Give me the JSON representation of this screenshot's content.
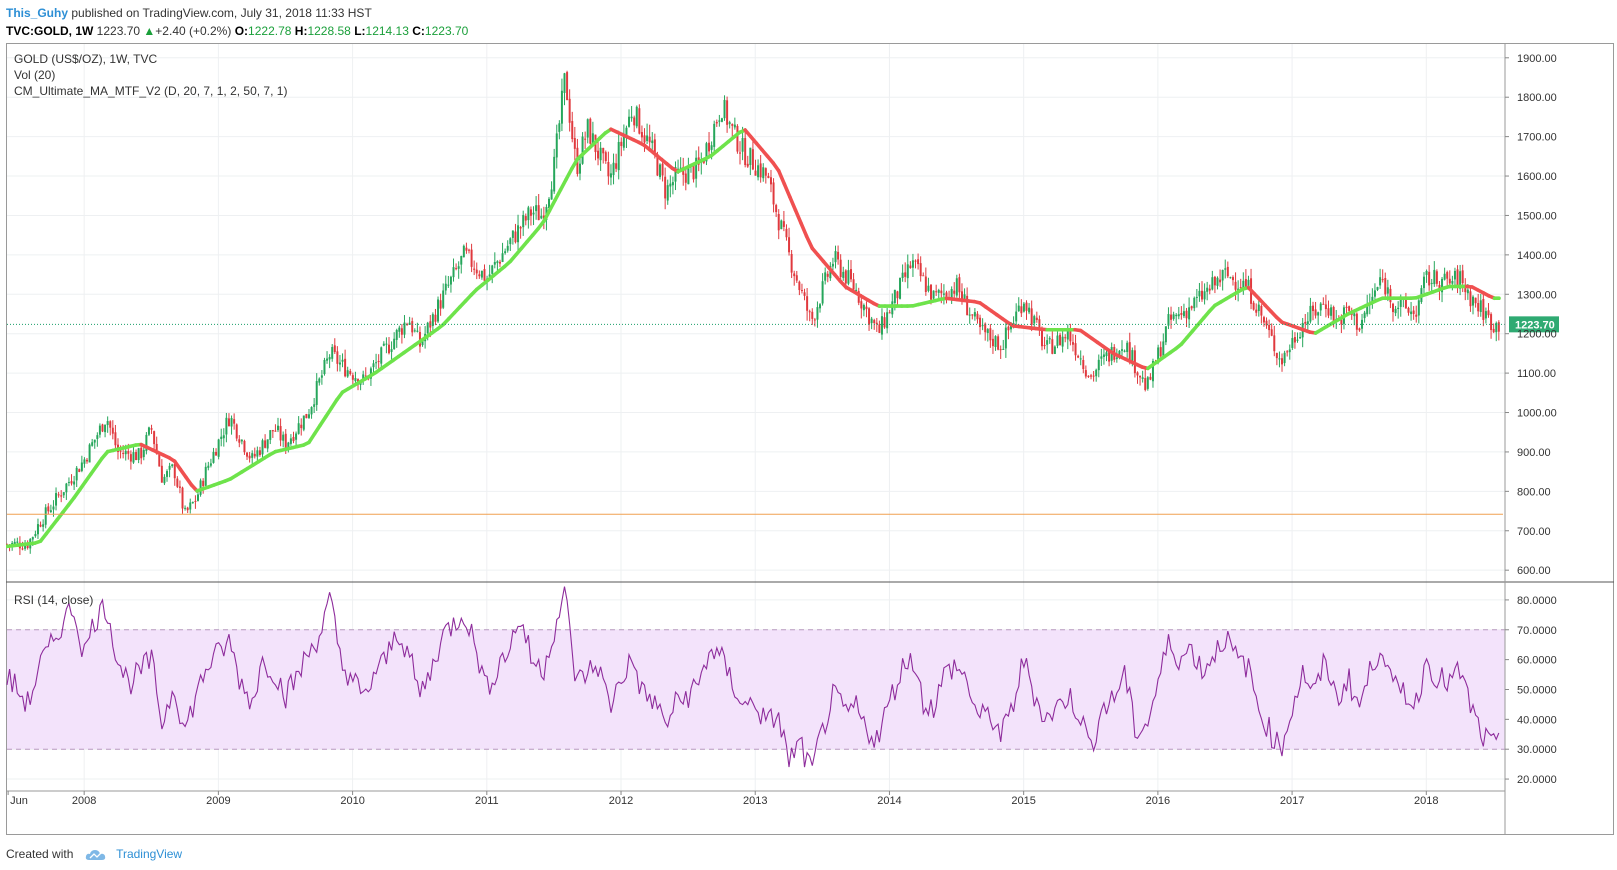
{
  "header": {
    "author": "This_Guhy",
    "published_text": "published on TradingView.com, July 31, 2018 11:33 HST",
    "symbol": "TVC:GOLD, 1W",
    "last": "1223.70",
    "change": "+2.40 (+0.2%)",
    "o_label": "O:",
    "o_value": "1222.78",
    "h_label": "H:",
    "h_value": "1228.58",
    "l_label": "L:",
    "l_value": "1214.13",
    "c_label": "C:",
    "c_value": "1223.70"
  },
  "legend": {
    "line1": "GOLD (US$/OZ), 1W, TVC",
    "line2": "Vol (20)",
    "line3": "CM_Ultimate_MA_MTF_V2 (D, 20, 7, 1, 2, 50, 7, 1)"
  },
  "rsi_legend": "RSI (14, close)",
  "footer": {
    "created_with": "Created with",
    "brand": "TradingView"
  },
  "colors": {
    "up": "#26a65b",
    "down": "#e0393e",
    "ma_up": "#6ee34b",
    "ma_down": "#f05050",
    "rsi": "#8e2c9c",
    "rsi_band": "#f3e3fb",
    "price_line": "#1a9f6a",
    "hline": "#f0a050"
  },
  "chart_data": [
    {
      "type": "candlestick",
      "title": "GOLD (US$/OZ), 1W, TVC",
      "x_tick_labels": [
        "Jun",
        "2008",
        "2009",
        "2010",
        "2011",
        "2012",
        "2013",
        "2014",
        "2015",
        "2016",
        "2017",
        "2018"
      ],
      "y_tick_labels": [
        "600.00",
        "700.00",
        "800.00",
        "900.00",
        "1000.00",
        "1100.00",
        "1200.00",
        "1300.00",
        "1400.00",
        "1500.00",
        "1600.00",
        "1700.00",
        "1800.00",
        "1900.00"
      ],
      "ylim": [
        570,
        1935
      ],
      "x_range": [
        "2007-06",
        "2018-07"
      ],
      "last_price_label": "1223.70",
      "last_price": 1223.7,
      "horizontal_line": 742,
      "close_path": [
        [
          "2007-06",
          665
        ],
        [
          "2007-08",
          668
        ],
        [
          "2007-09",
          720
        ],
        [
          "2007-10",
          760
        ],
        [
          "2007-11",
          800
        ],
        [
          "2008-01",
          880
        ],
        [
          "2008-03",
          990
        ],
        [
          "2008-04",
          900
        ],
        [
          "2008-06",
          890
        ],
        [
          "2008-07",
          960
        ],
        [
          "2008-08",
          830
        ],
        [
          "2008-09",
          860
        ],
        [
          "2008-10",
          740
        ],
        [
          "2008-11",
          780
        ],
        [
          "2008-12",
          860
        ],
        [
          "2009-02",
          990
        ],
        [
          "2009-04",
          880
        ],
        [
          "2009-06",
          960
        ],
        [
          "2009-07",
          920
        ],
        [
          "2009-09",
          1000
        ],
        [
          "2009-11",
          1150
        ],
        [
          "2009-12",
          1120
        ],
        [
          "2010-02",
          1080
        ],
        [
          "2010-04",
          1160
        ],
        [
          "2010-06",
          1240
        ],
        [
          "2010-07",
          1170
        ],
        [
          "2010-09",
          1290
        ],
        [
          "2010-11",
          1400
        ],
        [
          "2011-01",
          1340
        ],
        [
          "2011-03",
          1430
        ],
        [
          "2011-05",
          1510
        ],
        [
          "2011-06",
          1500
        ],
        [
          "2011-07",
          1620
        ],
        [
          "2011-08",
          1850
        ],
        [
          "2011-09",
          1620
        ],
        [
          "2011-10",
          1720
        ],
        [
          "2011-12",
          1590
        ],
        [
          "2012-02",
          1770
        ],
        [
          "2012-04",
          1650
        ],
        [
          "2012-05",
          1560
        ],
        [
          "2012-06",
          1600
        ],
        [
          "2012-08",
          1620
        ],
        [
          "2012-10",
          1780
        ],
        [
          "2012-11",
          1710
        ],
        [
          "2012-12",
          1660
        ],
        [
          "2013-02",
          1600
        ],
        [
          "2013-04",
          1400
        ],
        [
          "2013-06",
          1230
        ],
        [
          "2013-08",
          1390
        ],
        [
          "2013-10",
          1310
        ],
        [
          "2013-12",
          1200
        ],
        [
          "2014-03",
          1380
        ],
        [
          "2014-05",
          1290
        ],
        [
          "2014-07",
          1320
        ],
        [
          "2014-09",
          1210
        ],
        [
          "2014-11",
          1170
        ],
        [
          "2015-01",
          1290
        ],
        [
          "2015-03",
          1160
        ],
        [
          "2015-05",
          1200
        ],
        [
          "2015-07",
          1090
        ],
        [
          "2015-08",
          1130
        ],
        [
          "2015-10",
          1180
        ],
        [
          "2015-12",
          1060
        ],
        [
          "2016-02",
          1230
        ],
        [
          "2016-04",
          1270
        ],
        [
          "2016-07",
          1350
        ],
        [
          "2016-09",
          1320
        ],
        [
          "2016-10",
          1260
        ],
        [
          "2016-12",
          1130
        ],
        [
          "2017-02",
          1230
        ],
        [
          "2017-04",
          1280
        ],
        [
          "2017-05",
          1230
        ],
        [
          "2017-06",
          1260
        ],
        [
          "2017-07",
          1220
        ],
        [
          "2017-09",
          1340
        ],
        [
          "2017-10",
          1280
        ],
        [
          "2017-12",
          1250
        ],
        [
          "2018-01",
          1340
        ],
        [
          "2018-03",
          1330
        ],
        [
          "2018-04",
          1340
        ],
        [
          "2018-05",
          1290
        ],
        [
          "2018-06",
          1260
        ],
        [
          "2018-07",
          1223
        ]
      ],
      "ma_path": [
        [
          "2007-06",
          660
        ],
        [
          "2007-09",
          670
        ],
        [
          "2007-12",
          780
        ],
        [
          "2008-03",
          900
        ],
        [
          "2008-06",
          920
        ],
        [
          "2008-09",
          880
        ],
        [
          "2008-11",
          800
        ],
        [
          "2009-02",
          830
        ],
        [
          "2009-06",
          900
        ],
        [
          "2009-09",
          920
        ],
        [
          "2009-12",
          1050
        ],
        [
          "2010-03",
          1100
        ],
        [
          "2010-06",
          1160
        ],
        [
          "2010-09",
          1220
        ],
        [
          "2010-12",
          1310
        ],
        [
          "2011-03",
          1380
        ],
        [
          "2011-06",
          1480
        ],
        [
          "2011-09",
          1640
        ],
        [
          "2011-12",
          1720
        ],
        [
          "2012-03",
          1680
        ],
        [
          "2012-06",
          1610
        ],
        [
          "2012-09",
          1650
        ],
        [
          "2012-12",
          1720
        ],
        [
          "2013-03",
          1620
        ],
        [
          "2013-06",
          1420
        ],
        [
          "2013-09",
          1320
        ],
        [
          "2013-12",
          1270
        ],
        [
          "2014-03",
          1270
        ],
        [
          "2014-06",
          1290
        ],
        [
          "2014-09",
          1280
        ],
        [
          "2014-12",
          1220
        ],
        [
          "2015-03",
          1210
        ],
        [
          "2015-06",
          1210
        ],
        [
          "2015-09",
          1150
        ],
        [
          "2015-12",
          1110
        ],
        [
          "2016-03",
          1170
        ],
        [
          "2016-06",
          1270
        ],
        [
          "2016-09",
          1320
        ],
        [
          "2016-12",
          1230
        ],
        [
          "2017-03",
          1200
        ],
        [
          "2017-06",
          1250
        ],
        [
          "2017-09",
          1290
        ],
        [
          "2017-12",
          1290
        ],
        [
          "2018-03",
          1320
        ],
        [
          "2018-05",
          1320
        ],
        [
          "2018-07",
          1290
        ]
      ]
    },
    {
      "type": "line",
      "title": "RSI (14, close)",
      "y_tick_labels": [
        "20.0000",
        "30.0000",
        "40.0000",
        "50.0000",
        "60.0000",
        "70.0000",
        "80.0000"
      ],
      "ylim": [
        16,
        86
      ],
      "band": [
        30,
        70
      ],
      "series": [
        {
          "values": [
            [
              "2007-06",
              55
            ],
            [
              "2007-07",
              50
            ],
            [
              "2007-08",
              45
            ],
            [
              "2007-09",
              58
            ],
            [
              "2007-10",
              64
            ],
            [
              "2007-11",
              72
            ],
            [
              "2007-12",
              78
            ],
            [
              "2008-01",
              62
            ],
            [
              "2008-02",
              74
            ],
            [
              "2008-03",
              78
            ],
            [
              "2008-04",
              60
            ],
            [
              "2008-05",
              52
            ],
            [
              "2008-06",
              56
            ],
            [
              "2008-07",
              60
            ],
            [
              "2008-08",
              38
            ],
            [
              "2008-09",
              52
            ],
            [
              "2008-10",
              36
            ],
            [
              "2008-11",
              48
            ],
            [
              "2008-12",
              58
            ],
            [
              "2009-01",
              62
            ],
            [
              "2009-02",
              66
            ],
            [
              "2009-03",
              52
            ],
            [
              "2009-04",
              46
            ],
            [
              "2009-05",
              60
            ],
            [
              "2009-06",
              56
            ],
            [
              "2009-07",
              48
            ],
            [
              "2009-08",
              54
            ],
            [
              "2009-09",
              62
            ],
            [
              "2009-10",
              68
            ],
            [
              "2009-11",
              80
            ],
            [
              "2009-12",
              58
            ],
            [
              "2010-01",
              54
            ],
            [
              "2010-02",
              46
            ],
            [
              "2010-03",
              56
            ],
            [
              "2010-04",
              60
            ],
            [
              "2010-05",
              70
            ],
            [
              "2010-06",
              62
            ],
            [
              "2010-07",
              48
            ],
            [
              "2010-08",
              56
            ],
            [
              "2010-09",
              68
            ],
            [
              "2010-10",
              72
            ],
            [
              "2010-11",
              76
            ],
            [
              "2010-12",
              64
            ],
            [
              "2011-01",
              50
            ],
            [
              "2011-02",
              58
            ],
            [
              "2011-03",
              64
            ],
            [
              "2011-04",
              74
            ],
            [
              "2011-05",
              60
            ],
            [
              "2011-06",
              56
            ],
            [
              "2011-07",
              70
            ],
            [
              "2011-08",
              82
            ],
            [
              "2011-09",
              52
            ],
            [
              "2011-10",
              56
            ],
            [
              "2011-11",
              58
            ],
            [
              "2011-12",
              44
            ],
            [
              "2012-01",
              54
            ],
            [
              "2012-02",
              60
            ],
            [
              "2012-03",
              48
            ],
            [
              "2012-04",
              46
            ],
            [
              "2012-05",
              38
            ],
            [
              "2012-06",
              46
            ],
            [
              "2012-07",
              48
            ],
            [
              "2012-08",
              52
            ],
            [
              "2012-09",
              64
            ],
            [
              "2012-10",
              60
            ],
            [
              "2012-11",
              52
            ],
            [
              "2012-12",
              44
            ],
            [
              "2013-01",
              46
            ],
            [
              "2013-02",
              38
            ],
            [
              "2013-03",
              42
            ],
            [
              "2013-04",
              26
            ],
            [
              "2013-05",
              32
            ],
            [
              "2013-06",
              22
            ],
            [
              "2013-07",
              36
            ],
            [
              "2013-08",
              48
            ],
            [
              "2013-09",
              42
            ],
            [
              "2013-10",
              44
            ],
            [
              "2013-11",
              36
            ],
            [
              "2013-12",
              34
            ],
            [
              "2014-01",
              46
            ],
            [
              "2014-02",
              56
            ],
            [
              "2014-03",
              62
            ],
            [
              "2014-04",
              46
            ],
            [
              "2014-05",
              44
            ],
            [
              "2014-06",
              56
            ],
            [
              "2014-07",
              58
            ],
            [
              "2014-08",
              52
            ],
            [
              "2014-09",
              40
            ],
            [
              "2014-10",
              42
            ],
            [
              "2014-11",
              34
            ],
            [
              "2014-12",
              44
            ],
            [
              "2015-01",
              60
            ],
            [
              "2015-02",
              48
            ],
            [
              "2015-03",
              40
            ],
            [
              "2015-04",
              44
            ],
            [
              "2015-05",
              48
            ],
            [
              "2015-06",
              42
            ],
            [
              "2015-07",
              30
            ],
            [
              "2015-08",
              44
            ],
            [
              "2015-09",
              46
            ],
            [
              "2015-10",
              56
            ],
            [
              "2015-11",
              36
            ],
            [
              "2015-12",
              38
            ],
            [
              "2016-01",
              52
            ],
            [
              "2016-02",
              66
            ],
            [
              "2016-03",
              60
            ],
            [
              "2016-04",
              64
            ],
            [
              "2016-05",
              56
            ],
            [
              "2016-06",
              62
            ],
            [
              "2016-07",
              68
            ],
            [
              "2016-08",
              60
            ],
            [
              "2016-09",
              58
            ],
            [
              "2016-10",
              44
            ],
            [
              "2016-11",
              36
            ],
            [
              "2016-12",
              30
            ],
            [
              "2017-01",
              44
            ],
            [
              "2017-02",
              56
            ],
            [
              "2017-03",
              48
            ],
            [
              "2017-04",
              60
            ],
            [
              "2017-05",
              46
            ],
            [
              "2017-06",
              54
            ],
            [
              "2017-07",
              44
            ],
            [
              "2017-08",
              56
            ],
            [
              "2017-09",
              66
            ],
            [
              "2017-10",
              50
            ],
            [
              "2017-11",
              50
            ],
            [
              "2017-12",
              44
            ],
            [
              "2018-01",
              60
            ],
            [
              "2018-02",
              54
            ],
            [
              "2018-03",
              52
            ],
            [
              "2018-04",
              56
            ],
            [
              "2018-05",
              44
            ],
            [
              "2018-06",
              34
            ],
            [
              "2018-07",
              31
            ]
          ]
        }
      ]
    }
  ]
}
